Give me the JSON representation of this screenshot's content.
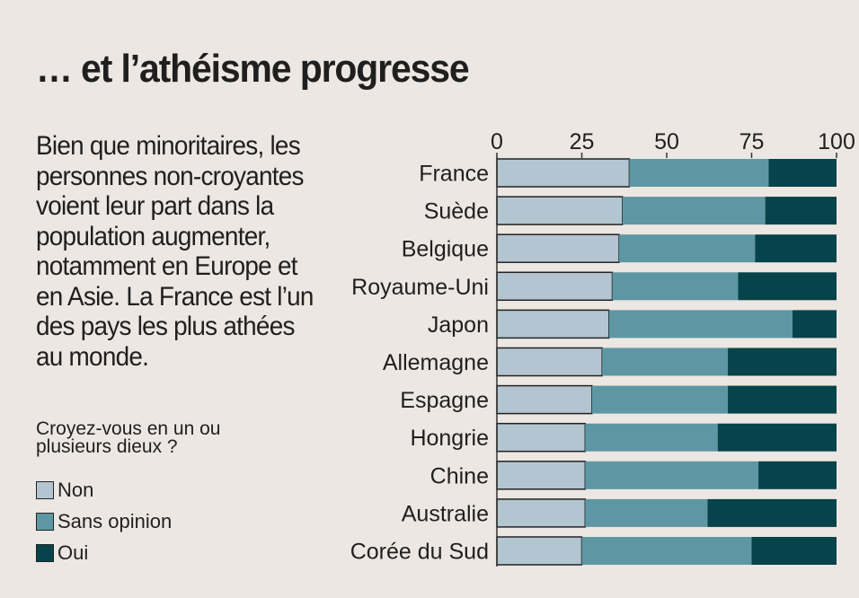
{
  "title": "… et l’athéisme progresse",
  "description": "Bien que minoritaires, les personnes non-croyantes voient leur part dans la population augmenter, notamment en Europe et en Asie. La France est l’un des pays les plus athées au monde.",
  "question": "Croyez-vous en un ou plusieurs dieux ?",
  "colors": {
    "non": "#b3c5d1",
    "sans_opinion": "#5e97a3",
    "oui": "#07434b",
    "background": "#ece7e2"
  },
  "chart_data": {
    "type": "bar",
    "orientation": "horizontal",
    "stacked": true,
    "title": "… et l’athéisme progresse",
    "question": "Croyez-vous en un ou plusieurs dieux ?",
    "categories": [
      "France",
      "Suède",
      "Belgique",
      "Royaume-Uni",
      "Japon",
      "Allemagne",
      "Espagne",
      "Hongrie",
      "Chine",
      "Australie",
      "Corée du Sud"
    ],
    "series": [
      {
        "name": "Non",
        "color": "#b3c5d1",
        "values": [
          39,
          37,
          36,
          34,
          33,
          31,
          28,
          26,
          26,
          26,
          25
        ]
      },
      {
        "name": "Sans opinion",
        "color": "#5e97a3",
        "values": [
          41,
          42,
          40,
          37,
          54,
          37,
          40,
          39,
          51,
          36,
          50
        ]
      },
      {
        "name": "Oui",
        "color": "#07434b",
        "values": [
          20,
          21,
          24,
          29,
          13,
          32,
          32,
          35,
          23,
          38,
          25
        ]
      }
    ],
    "xlim": [
      0,
      100
    ],
    "xticks": [
      "0",
      "25",
      "50",
      "75",
      "100"
    ],
    "xtick_position": "top",
    "legend_position": "bottom-left"
  }
}
